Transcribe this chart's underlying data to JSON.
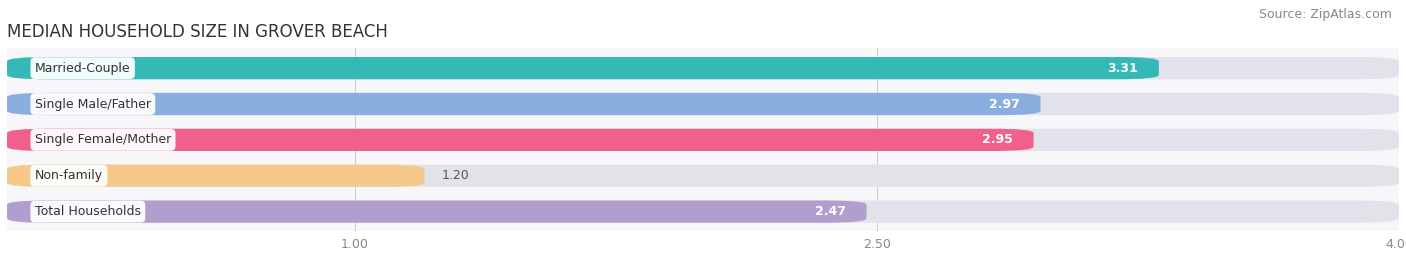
{
  "title": "MEDIAN HOUSEHOLD SIZE IN GROVER BEACH",
  "source": "Source: ZipAtlas.com",
  "categories": [
    "Married-Couple",
    "Single Male/Father",
    "Single Female/Mother",
    "Non-family",
    "Total Households"
  ],
  "values": [
    3.31,
    2.97,
    2.95,
    1.2,
    2.47
  ],
  "bar_colors": [
    "#35b8b8",
    "#8aaee0",
    "#f0608a",
    "#f5c98a",
    "#b09ecf"
  ],
  "bar_bg_color": "#e2e2ea",
  "x_min": 0.0,
  "x_max": 4.0,
  "xticks": [
    1.0,
    2.5,
    4.0
  ],
  "title_fontsize": 12,
  "source_fontsize": 9,
  "value_fontsize": 9,
  "category_fontsize": 9,
  "tick_fontsize": 9,
  "background_color": "#ffffff",
  "plot_bg_color": "#f7f7fa",
  "figsize": [
    14.06,
    2.69
  ],
  "dpi": 100
}
